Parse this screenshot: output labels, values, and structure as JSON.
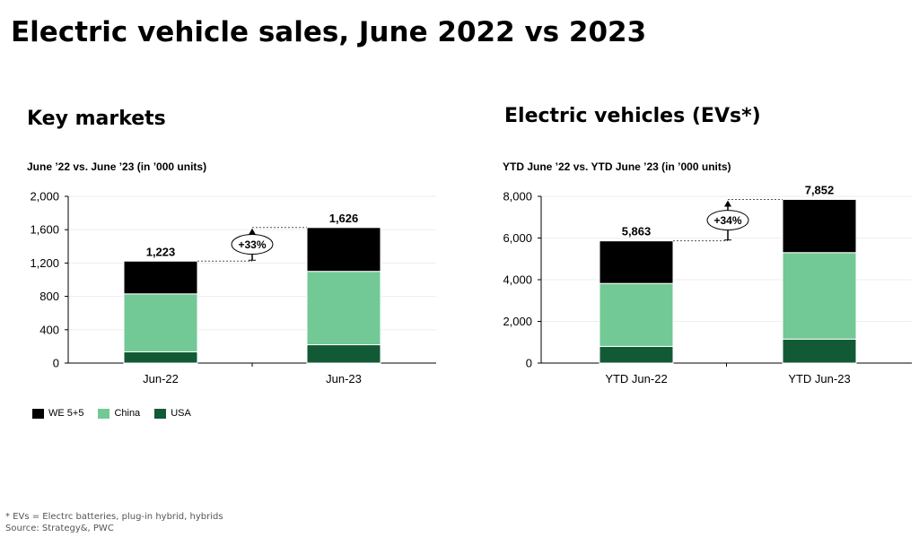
{
  "page_title": "Electric vehicle sales, June 2022 vs 2023",
  "colors": {
    "we": "#000000",
    "china": "#72c995",
    "usa": "#125a35"
  },
  "legend": [
    {
      "name": "WE 5+5",
      "color": "#000000"
    },
    {
      "name": "China",
      "color": "#72c995"
    },
    {
      "name": "USA",
      "color": "#125a35"
    }
  ],
  "chart_data": [
    {
      "type": "bar",
      "stacked": true,
      "title": "Key markets",
      "subtitle": "June ’22 vs. June ’23 (in ’000 units)",
      "categories": [
        "Jun-22",
        "Jun-23"
      ],
      "series": [
        {
          "name": "USA",
          "values": [
            135,
            220
          ]
        },
        {
          "name": "China",
          "values": [
            695,
            880
          ]
        },
        {
          "name": "WE 5+5",
          "values": [
            393,
            526
          ]
        }
      ],
      "totals": [
        1223,
        1626
      ],
      "total_labels": [
        "1,223",
        "1,626"
      ],
      "ylim": [
        0,
        2000
      ],
      "yticks": [
        0,
        400,
        800,
        1200,
        1600,
        2000
      ],
      "ytick_labels": [
        "0",
        "400",
        "800",
        "1,200",
        "1,600",
        "2,000"
      ],
      "growth_label": "+33%",
      "grid": true
    },
    {
      "type": "bar",
      "stacked": true,
      "title": "Electric vehicles (EVs*)",
      "subtitle": "YTD June ’22 vs. YTD June ’23 (in ’000 units)",
      "categories": [
        "YTD Jun-22",
        "YTD Jun-23"
      ],
      "series": [
        {
          "name": "USA",
          "values": [
            800,
            1150
          ]
        },
        {
          "name": "China",
          "values": [
            3020,
            4150
          ]
        },
        {
          "name": "WE 5+5",
          "values": [
            2043,
            2552
          ]
        }
      ],
      "totals": [
        5863,
        7852
      ],
      "total_labels": [
        "5,863",
        "7,852"
      ],
      "ylim": [
        0,
        8000
      ],
      "yticks": [
        0,
        2000,
        4000,
        6000,
        8000
      ],
      "ytick_labels": [
        "0",
        "2,000",
        "4,000",
        "6,000",
        "8,000"
      ],
      "growth_label": "+34%",
      "grid": true
    }
  ],
  "footnote": "* EVs = Electrc batteries, plug-in hybrid, hybrids",
  "source": "Source: Strategy&, PWC"
}
